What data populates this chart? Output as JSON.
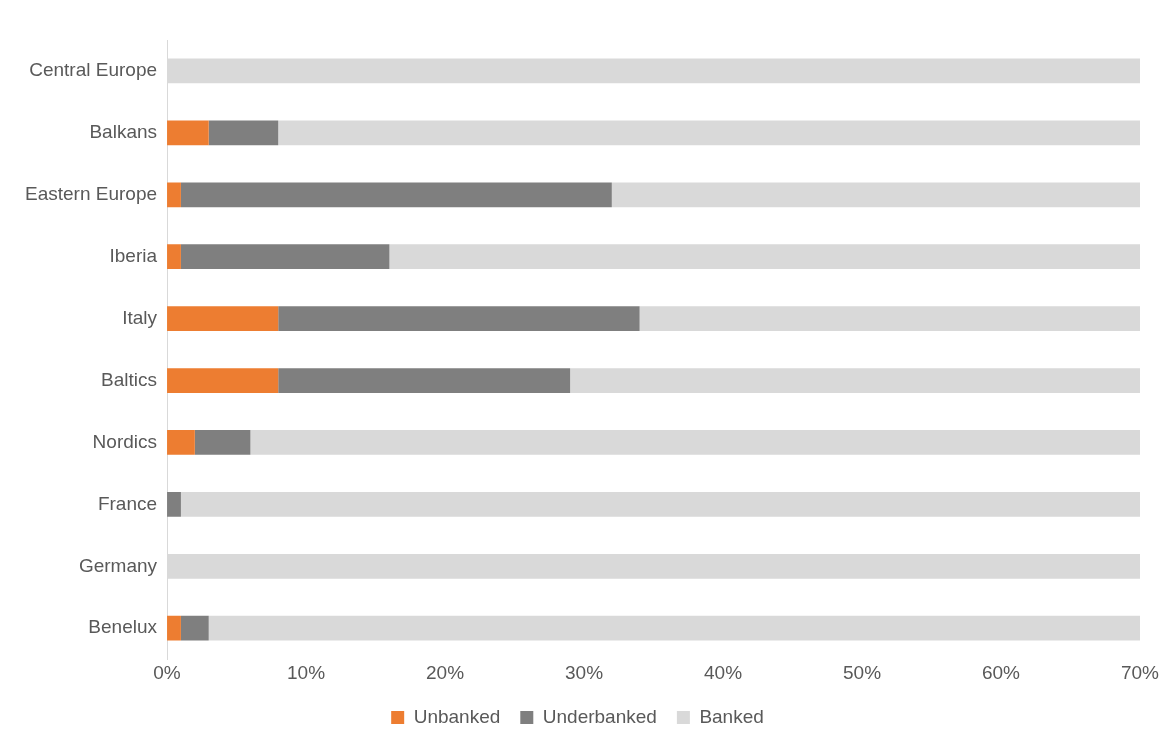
{
  "chart_data": {
    "type": "bar",
    "orientation": "horizontal",
    "stacked": true,
    "categories": [
      "Central Europe",
      "Balkans",
      "Eastern Europe",
      "Iberia",
      "Italy",
      "Baltics",
      "Nordics",
      "France",
      "Germany",
      "Benelux"
    ],
    "series": [
      {
        "name": "Unbanked",
        "color": "#ed7d31",
        "values": [
          0,
          3,
          1,
          1,
          8,
          8,
          2,
          0,
          0,
          1
        ]
      },
      {
        "name": "Underbanked",
        "color": "#7f7f7f",
        "values": [
          0,
          5,
          31,
          15,
          26,
          21,
          4,
          1,
          0,
          2
        ]
      },
      {
        "name": "Banked",
        "color": "#d9d9d9",
        "values": [
          70,
          62,
          38,
          54,
          36,
          41,
          64,
          69,
          70,
          67
        ]
      }
    ],
    "xlim": [
      0,
      70
    ],
    "xticks": [
      {
        "value": 0,
        "label": "0%"
      },
      {
        "value": 10,
        "label": "10%"
      },
      {
        "value": 20,
        "label": "20%"
      },
      {
        "value": 30,
        "label": "30%"
      },
      {
        "value": 40,
        "label": "40%"
      },
      {
        "value": 50,
        "label": "50%"
      },
      {
        "value": 60,
        "label": "60%"
      },
      {
        "value": 70,
        "label": "70%"
      }
    ],
    "grid": false,
    "legend": "bottom"
  }
}
